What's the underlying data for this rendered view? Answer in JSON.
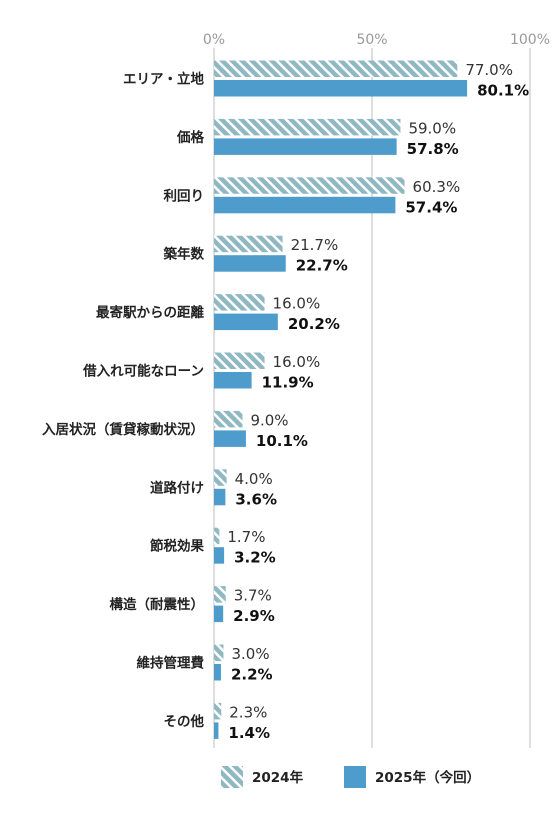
{
  "chart_data": {
    "type": "bar",
    "orientation": "horizontal",
    "categories": [
      "エリア・立地",
      "価格",
      "利回り",
      "築年数",
      "最寄駅からの距離",
      "借入れ可能なローン",
      "入居状況（賃貸稼動状況）",
      "道路付け",
      "節税効果",
      "構造（耐震性）",
      "維持管理費",
      "その他"
    ],
    "series": [
      {
        "name": "2024年",
        "values": [
          77.0,
          59.0,
          60.3,
          21.7,
          16.0,
          16.0,
          9.0,
          4.0,
          1.7,
          3.7,
          3.0,
          2.3
        ],
        "labels": [
          "77.0%",
          "59.0%",
          "60.3%",
          "21.7%",
          "16.0%",
          "16.0%",
          "9.0%",
          "4.0%",
          "1.7%",
          "3.7%",
          "3.0%",
          "2.3%"
        ],
        "color": "#8fb8c2",
        "pattern": "hatch"
      },
      {
        "name": "2025年（今回）",
        "values": [
          80.1,
          57.8,
          57.4,
          22.7,
          20.2,
          11.9,
          10.1,
          3.6,
          3.2,
          2.9,
          2.2,
          1.4
        ],
        "labels": [
          "80.1%",
          "57.8%",
          "57.4%",
          "22.7%",
          "20.2%",
          "11.9%",
          "10.1%",
          "3.6%",
          "3.2%",
          "2.9%",
          "2.2%",
          "1.4%"
        ],
        "color": "#4d9ccb",
        "pattern": "solid"
      }
    ],
    "xlim": [
      0,
      100
    ],
    "xticks": [
      "0%",
      "50%",
      "100%"
    ],
    "grid": true,
    "legend_position": "bottom"
  }
}
